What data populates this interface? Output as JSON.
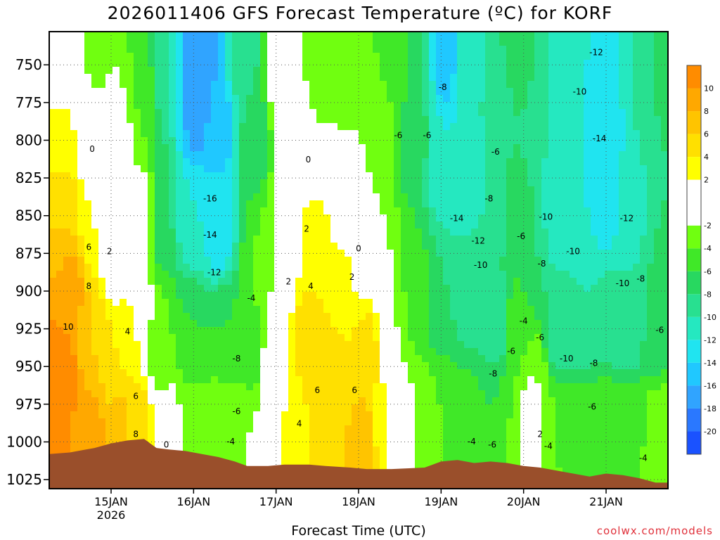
{
  "header": {
    "title": "2026011406 GFS Forecast Temperature (ºC) for KORF"
  },
  "footer": {
    "xlabel": "Forecast Time (UTC)",
    "credit": "coolwx.com/models"
  },
  "colors": {
    "bands": [
      "#1a52ff",
      "#2a78ff",
      "#30a4ff",
      "#20c8ff",
      "#20e4f0",
      "#25e8c0",
      "#28e090",
      "#28d860",
      "#40e828",
      "#70ff10",
      "#ffffff",
      "#ffff00",
      "#ffe000",
      "#ffc400",
      "#ffa800",
      "#ff8c00",
      "#ff7000"
    ],
    "ground": "#9a4f2b",
    "zero_line": "#c02050",
    "credit": "#e0303a"
  },
  "chart_data": {
    "type": "heatmap",
    "title": "2026011406 GFS Forecast Temperature (ºC) for KORF",
    "xlabel": "Forecast Time (UTC)",
    "ylabel": "",
    "x_ticks": [
      {
        "label": "15JAN",
        "sub": "2026",
        "day": 15
      },
      {
        "label": "16JAN",
        "sub": "",
        "day": 16
      },
      {
        "label": "17JAN",
        "sub": "",
        "day": 17
      },
      {
        "label": "18JAN",
        "sub": "",
        "day": 18
      },
      {
        "label": "19JAN",
        "sub": "",
        "day": 19
      },
      {
        "label": "20JAN",
        "sub": "",
        "day": 20
      },
      {
        "label": "21JAN",
        "sub": "",
        "day": 21
      }
    ],
    "x_range_days": [
      14.25,
      21.75
    ],
    "y_ticks": [
      "750",
      "775",
      "800",
      "825",
      "850",
      "875",
      "900",
      "925",
      "950",
      "975",
      "1000",
      "1025"
    ],
    "y_range_hpa": [
      728,
      1031
    ],
    "colorbar": {
      "ticks": [
        "10",
        "8",
        "6",
        "4",
        "2",
        "-2",
        "-4",
        "-6",
        "-8",
        "-10",
        "-12",
        "-14",
        "-16",
        "-18",
        "-20"
      ],
      "range": [
        -22,
        12
      ]
    },
    "surface_pressure": [
      [
        14.25,
        1008
      ],
      [
        14.5,
        1007
      ],
      [
        14.8,
        1004
      ],
      [
        15.0,
        1001
      ],
      [
        15.2,
        999
      ],
      [
        15.4,
        998
      ],
      [
        15.55,
        1004
      ],
      [
        15.7,
        1005
      ],
      [
        15.9,
        1006
      ],
      [
        16.1,
        1008
      ],
      [
        16.3,
        1010
      ],
      [
        16.5,
        1013
      ],
      [
        16.65,
        1016
      ],
      [
        16.9,
        1016
      ],
      [
        17.1,
        1015
      ],
      [
        17.4,
        1015
      ],
      [
        17.6,
        1016
      ],
      [
        17.9,
        1017
      ],
      [
        18.1,
        1018
      ],
      [
        18.4,
        1018
      ],
      [
        18.8,
        1017
      ],
      [
        19.0,
        1013
      ],
      [
        19.2,
        1012
      ],
      [
        19.4,
        1014
      ],
      [
        19.6,
        1013
      ],
      [
        19.8,
        1014
      ],
      [
        20.0,
        1016
      ],
      [
        20.2,
        1017
      ],
      [
        20.4,
        1019
      ],
      [
        20.6,
        1021
      ],
      [
        20.8,
        1023
      ],
      [
        21.0,
        1021
      ],
      [
        21.2,
        1022
      ],
      [
        21.4,
        1024
      ],
      [
        21.6,
        1027
      ],
      [
        21.75,
        1027
      ]
    ],
    "temperature_nodes": [
      [
        14.3,
        1000,
        12
      ],
      [
        14.4,
        950,
        11
      ],
      [
        14.5,
        900,
        9
      ],
      [
        14.4,
        850,
        6
      ],
      [
        14.4,
        800,
        3
      ],
      [
        14.4,
        760,
        1
      ],
      [
        14.6,
        750,
        -1
      ],
      [
        14.75,
        1000,
        9
      ],
      [
        14.8,
        925,
        6
      ],
      [
        14.8,
        850,
        2
      ],
      [
        14.8,
        790,
        -1
      ],
      [
        14.8,
        740,
        -3
      ],
      [
        15.1,
        990,
        7
      ],
      [
        15.1,
        950,
        4
      ],
      [
        15.0,
        880,
        1
      ],
      [
        15.05,
        800,
        -1
      ],
      [
        15.35,
        990,
        5
      ],
      [
        15.3,
        925,
        2
      ],
      [
        15.4,
        850,
        -1
      ],
      [
        15.4,
        760,
        -4
      ],
      [
        15.65,
        990,
        0
      ],
      [
        15.6,
        940,
        -4
      ],
      [
        15.6,
        850,
        -8
      ],
      [
        15.6,
        750,
        -10
      ],
      [
        16.0,
        990,
        -3
      ],
      [
        16.0,
        930,
        -6
      ],
      [
        16.0,
        850,
        -12
      ],
      [
        16.05,
        780,
        -17
      ],
      [
        16.1,
        745,
        -18
      ],
      [
        16.3,
        990,
        -2
      ],
      [
        16.35,
        930,
        -6
      ],
      [
        16.3,
        860,
        -13
      ],
      [
        16.3,
        790,
        -15
      ],
      [
        16.6,
        1000,
        -2
      ],
      [
        16.7,
        940,
        -5
      ],
      [
        16.8,
        880,
        -4
      ],
      [
        16.75,
        800,
        -7
      ],
      [
        16.6,
        745,
        -9
      ],
      [
        17.0,
        990,
        2
      ],
      [
        17.0,
        940,
        1
      ],
      [
        17.1,
        870,
        0
      ],
      [
        17.15,
        780,
        1
      ],
      [
        17.1,
        745,
        0
      ],
      [
        17.35,
        990,
        4
      ],
      [
        17.4,
        930,
        5
      ],
      [
        17.45,
        870,
        3
      ],
      [
        17.3,
        800,
        -1
      ],
      [
        17.5,
        750,
        -3
      ],
      [
        17.75,
        990,
        6
      ],
      [
        17.7,
        950,
        5
      ],
      [
        17.8,
        900,
        3
      ],
      [
        17.9,
        840,
        0
      ],
      [
        17.8,
        780,
        -2
      ],
      [
        17.9,
        745,
        -4
      ],
      [
        18.05,
        1000,
        7
      ],
      [
        18.1,
        940,
        5
      ],
      [
        18.05,
        880,
        1
      ],
      [
        18.1,
        820,
        -2
      ],
      [
        18.2,
        760,
        -4
      ],
      [
        18.35,
        990,
        2
      ],
      [
        18.4,
        920,
        -2
      ],
      [
        18.3,
        800,
        -3
      ],
      [
        18.5,
        750,
        -5
      ],
      [
        18.7,
        990,
        -2
      ],
      [
        18.7,
        900,
        -5
      ],
      [
        18.65,
        800,
        -7
      ],
      [
        18.7,
        750,
        -8
      ],
      [
        19.0,
        990,
        -4
      ],
      [
        19.0,
        900,
        -8
      ],
      [
        19.05,
        820,
        -12
      ],
      [
        19.05,
        745,
        -15
      ],
      [
        19.3,
        990,
        -5
      ],
      [
        19.35,
        900,
        -9
      ],
      [
        19.3,
        820,
        -12
      ],
      [
        19.3,
        750,
        -11
      ],
      [
        19.6,
        990,
        -6
      ],
      [
        19.65,
        920,
        -9
      ],
      [
        19.6,
        850,
        -10
      ],
      [
        19.7,
        780,
        -9
      ],
      [
        19.9,
        990,
        -4
      ],
      [
        19.95,
        920,
        -5
      ],
      [
        19.9,
        850,
        -6
      ],
      [
        19.95,
        750,
        -7
      ],
      [
        20.1,
        990,
        1
      ],
      [
        20.15,
        960,
        -2
      ],
      [
        20.1,
        880,
        -8
      ],
      [
        20.2,
        790,
        -10
      ],
      [
        20.4,
        990,
        -4
      ],
      [
        20.4,
        930,
        -9
      ],
      [
        20.4,
        850,
        -11
      ],
      [
        20.5,
        760,
        -11
      ],
      [
        20.7,
        990,
        -5
      ],
      [
        20.7,
        920,
        -10
      ],
      [
        20.8,
        850,
        -12
      ],
      [
        20.8,
        770,
        -12
      ],
      [
        21.0,
        990,
        -4
      ],
      [
        21.05,
        920,
        -9
      ],
      [
        21.0,
        840,
        -13
      ],
      [
        21.0,
        780,
        -14
      ],
      [
        21.05,
        745,
        -12
      ],
      [
        21.3,
        990,
        -5
      ],
      [
        21.3,
        920,
        -10
      ],
      [
        21.35,
        850,
        -11
      ],
      [
        21.4,
        770,
        -10
      ],
      [
        21.6,
        990,
        -3
      ],
      [
        21.6,
        930,
        -7
      ],
      [
        21.6,
        860,
        -8
      ],
      [
        21.6,
        760,
        -8
      ],
      [
        21.75,
        1000,
        -2
      ],
      [
        21.75,
        900,
        -6
      ],
      [
        21.75,
        760,
        -7
      ]
    ],
    "contour_labels": [
      {
        "text": "0",
        "x": 14.77,
        "p": 806
      },
      {
        "text": "2",
        "x": 14.98,
        "p": 874
      },
      {
        "text": "6",
        "x": 14.73,
        "p": 871
      },
      {
        "text": "8",
        "x": 14.73,
        "p": 897
      },
      {
        "text": "10",
        "x": 14.48,
        "p": 924
      },
      {
        "text": "4",
        "x": 15.2,
        "p": 927
      },
      {
        "text": "6",
        "x": 15.3,
        "p": 970
      },
      {
        "text": "8",
        "x": 15.3,
        "p": 995
      },
      {
        "text": "0",
        "x": 15.67,
        "p": 1002
      },
      {
        "text": "-16",
        "x": 16.2,
        "p": 839
      },
      {
        "text": "-14",
        "x": 16.2,
        "p": 863
      },
      {
        "text": "-12",
        "x": 16.25,
        "p": 888
      },
      {
        "text": "-8",
        "x": 16.52,
        "p": 945
      },
      {
        "text": "-6",
        "x": 16.52,
        "p": 980
      },
      {
        "text": "-4",
        "x": 16.45,
        "p": 1000
      },
      {
        "text": "-4",
        "x": 16.7,
        "p": 905
      },
      {
        "text": "0",
        "x": 17.39,
        "p": 813
      },
      {
        "text": "2",
        "x": 17.37,
        "p": 859
      },
      {
        "text": "2",
        "x": 17.15,
        "p": 894
      },
      {
        "text": "4",
        "x": 17.42,
        "p": 897
      },
      {
        "text": "2",
        "x": 17.92,
        "p": 891
      },
      {
        "text": "0",
        "x": 18.0,
        "p": 872
      },
      {
        "text": "4",
        "x": 17.28,
        "p": 988
      },
      {
        "text": "6",
        "x": 17.5,
        "p": 966
      },
      {
        "text": "6",
        "x": 17.95,
        "p": 966
      },
      {
        "text": "-8",
        "x": 19.02,
        "p": 765
      },
      {
        "text": "-6",
        "x": 18.83,
        "p": 797
      },
      {
        "text": "-6",
        "x": 19.66,
        "p": 808
      },
      {
        "text": "-8",
        "x": 19.58,
        "p": 839
      },
      {
        "text": "-14",
        "x": 19.19,
        "p": 852
      },
      {
        "text": "-12",
        "x": 19.45,
        "p": 867
      },
      {
        "text": "-10",
        "x": 19.48,
        "p": 883
      },
      {
        "text": "-6",
        "x": 19.97,
        "p": 864
      },
      {
        "text": "-10",
        "x": 20.27,
        "p": 851
      },
      {
        "text": "-8",
        "x": 20.22,
        "p": 882
      },
      {
        "text": "-10",
        "x": 20.6,
        "p": 874
      },
      {
        "text": "-4",
        "x": 20.0,
        "p": 920
      },
      {
        "text": "-6",
        "x": 20.2,
        "p": 931
      },
      {
        "text": "-6",
        "x": 19.85,
        "p": 940
      },
      {
        "text": "-8",
        "x": 19.63,
        "p": 955
      },
      {
        "text": "-10",
        "x": 20.52,
        "p": 945
      },
      {
        "text": "-8",
        "x": 20.85,
        "p": 948
      },
      {
        "text": "-6",
        "x": 20.83,
        "p": 977
      },
      {
        "text": "2",
        "x": 20.2,
        "p": 995
      },
      {
        "text": "-4",
        "x": 20.3,
        "p": 1003
      },
      {
        "text": "-4",
        "x": 19.37,
        "p": 1000
      },
      {
        "text": "-6",
        "x": 19.62,
        "p": 1002
      },
      {
        "text": "-10",
        "x": 20.68,
        "p": 768
      },
      {
        "text": "-12",
        "x": 20.88,
        "p": 742
      },
      {
        "text": "-14",
        "x": 20.92,
        "p": 799
      },
      {
        "text": "-12",
        "x": 21.25,
        "p": 852
      },
      {
        "text": "-10",
        "x": 21.2,
        "p": 895
      },
      {
        "text": "-8",
        "x": 21.42,
        "p": 892
      },
      {
        "text": "-6",
        "x": 21.65,
        "p": 926
      },
      {
        "text": "-4",
        "x": 21.45,
        "p": 1011
      },
      {
        "text": "-6",
        "x": 18.48,
        "p": 797
      }
    ],
    "grid": true,
    "legend": "right"
  }
}
